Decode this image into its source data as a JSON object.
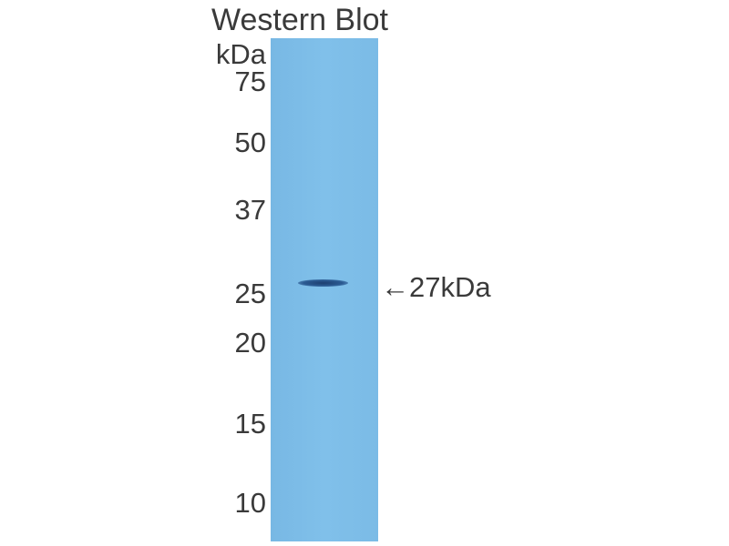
{
  "title": "Western Blot",
  "unit_label": "kDa",
  "markers": [
    "75",
    "50",
    "37",
    "25",
    "20",
    "15",
    "10"
  ],
  "band_annotation": {
    "arrow": "←",
    "label": "27kDa"
  },
  "colors": {
    "membrane": "#7fbde8",
    "band": "#1d3f70",
    "text": "#3a3a3a"
  }
}
